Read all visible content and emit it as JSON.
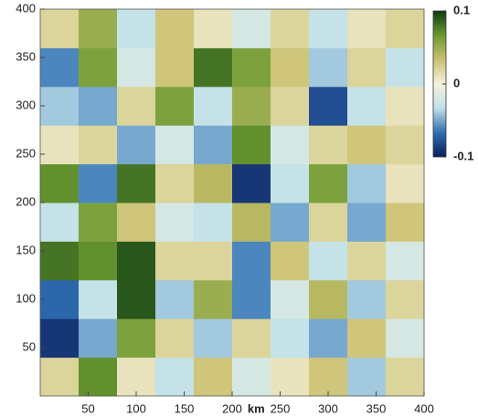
{
  "chart_data": {
    "type": "heatmap",
    "x_label": "km",
    "xlim": [
      0,
      400
    ],
    "ylim": [
      0,
      400
    ],
    "xticks": [
      50,
      100,
      150,
      200,
      250,
      300,
      350,
      400
    ],
    "yticks": [
      50,
      100,
      150,
      200,
      250,
      300,
      350,
      400
    ],
    "clim": [
      -0.1,
      0.1
    ],
    "cticks": [
      0.1,
      0,
      -0.1
    ],
    "colorscale": [
      "#0b1d5c",
      "#2f6fb3",
      "#bfe0e8",
      "#f4f2dc",
      "#cbc070",
      "#6a9a30",
      "#0e3a12"
    ],
    "z": [
      [
        0.02,
        0.07,
        0.01,
        -0.03,
        0.03,
        -0.02,
        0.01,
        0.03,
        -0.04,
        0.02
      ],
      [
        -0.09,
        -0.05,
        0.06,
        0.02,
        -0.04,
        0.02,
        -0.03,
        -0.05,
        0.03,
        -0.02
      ],
      [
        -0.07,
        -0.03,
        0.09,
        -0.04,
        0.05,
        -0.06,
        -0.02,
        0.04,
        -0.04,
        0.02
      ],
      [
        0.08,
        0.07,
        0.09,
        0.02,
        0.02,
        -0.06,
        0.03,
        -0.03,
        0.02,
        -0.02
      ],
      [
        -0.03,
        0.06,
        0.03,
        -0.02,
        -0.03,
        0.04,
        -0.05,
        0.02,
        -0.05,
        0.03
      ],
      [
        0.07,
        -0.06,
        0.08,
        0.02,
        0.04,
        -0.09,
        -0.03,
        0.06,
        -0.04,
        0.01
      ],
      [
        0.01,
        0.02,
        -0.05,
        -0.02,
        -0.05,
        0.07,
        -0.02,
        0.02,
        0.03,
        0.02
      ],
      [
        -0.04,
        -0.05,
        0.02,
        0.06,
        -0.03,
        0.05,
        0.02,
        -0.08,
        -0.03,
        0.01
      ],
      [
        -0.06,
        0.06,
        -0.02,
        0.03,
        0.08,
        0.06,
        0.03,
        -0.04,
        0.02,
        -0.03
      ],
      [
        0.02,
        0.05,
        -0.03,
        0.03,
        0.01,
        -0.02,
        0.02,
        -0.03,
        0.01,
        0.02
      ]
    ]
  }
}
